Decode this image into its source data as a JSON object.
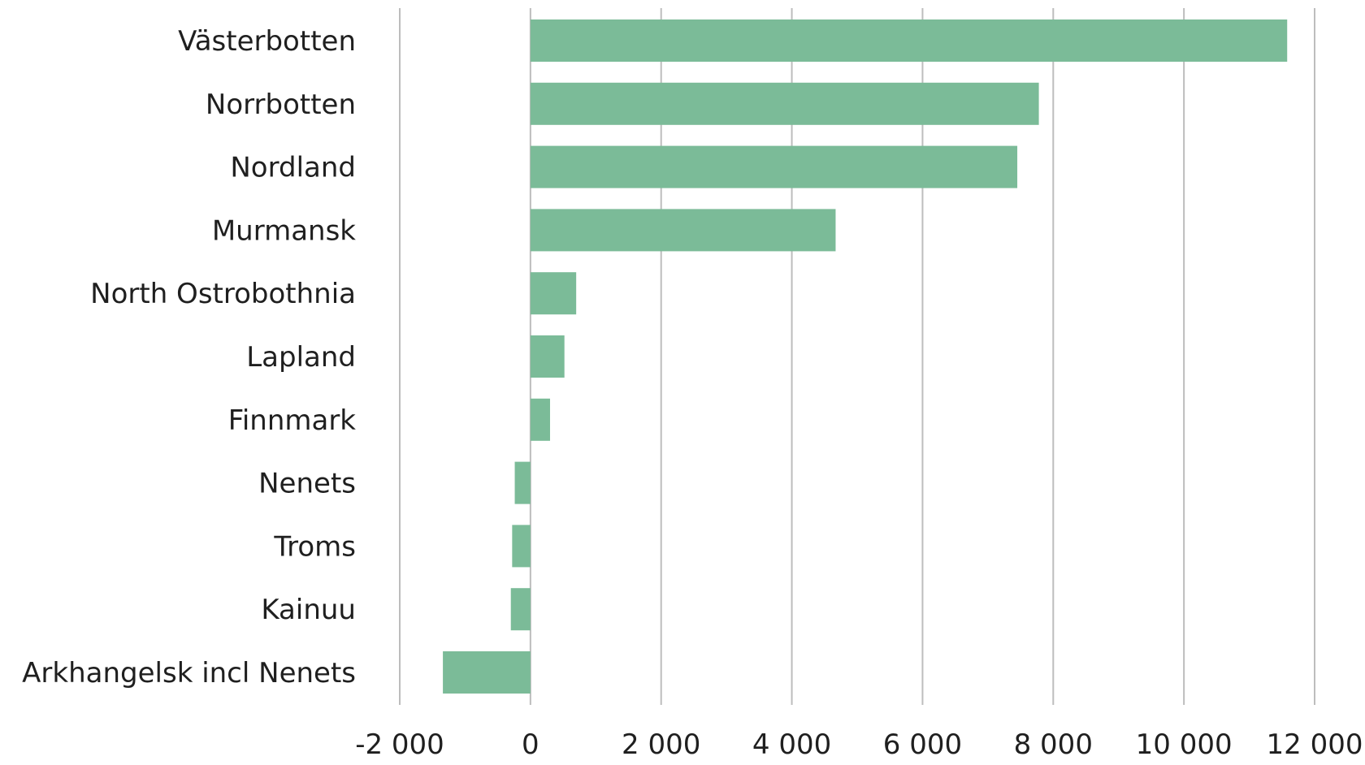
{
  "chart_data": {
    "type": "bar",
    "orientation": "horizontal",
    "categories": [
      "Västerbotten",
      "Norrbotten",
      "Nordland",
      "Murmansk",
      "North Ostrobothnia",
      "Lapland",
      "Finnmark",
      "Nenets",
      "Troms",
      "Kainuu",
      "Arkhangelsk incl Nenets"
    ],
    "values": [
      11580,
      7780,
      7450,
      4670,
      700,
      520,
      300,
      -240,
      -280,
      -300,
      -1340
    ],
    "xlim": [
      -2000,
      12000
    ],
    "xticks": [
      -2000,
      0,
      2000,
      4000,
      6000,
      8000,
      10000,
      12000
    ],
    "xtick_labels": [
      "-2 000",
      "0",
      "2 000",
      "4 000",
      "6 000",
      "8 000",
      "10 000",
      "12 000"
    ],
    "grid": "vertical",
    "legend": "none",
    "bar_color": "#7bbb98",
    "grid_color": "#bdbdbd",
    "text_color": "#1f1f1f"
  }
}
